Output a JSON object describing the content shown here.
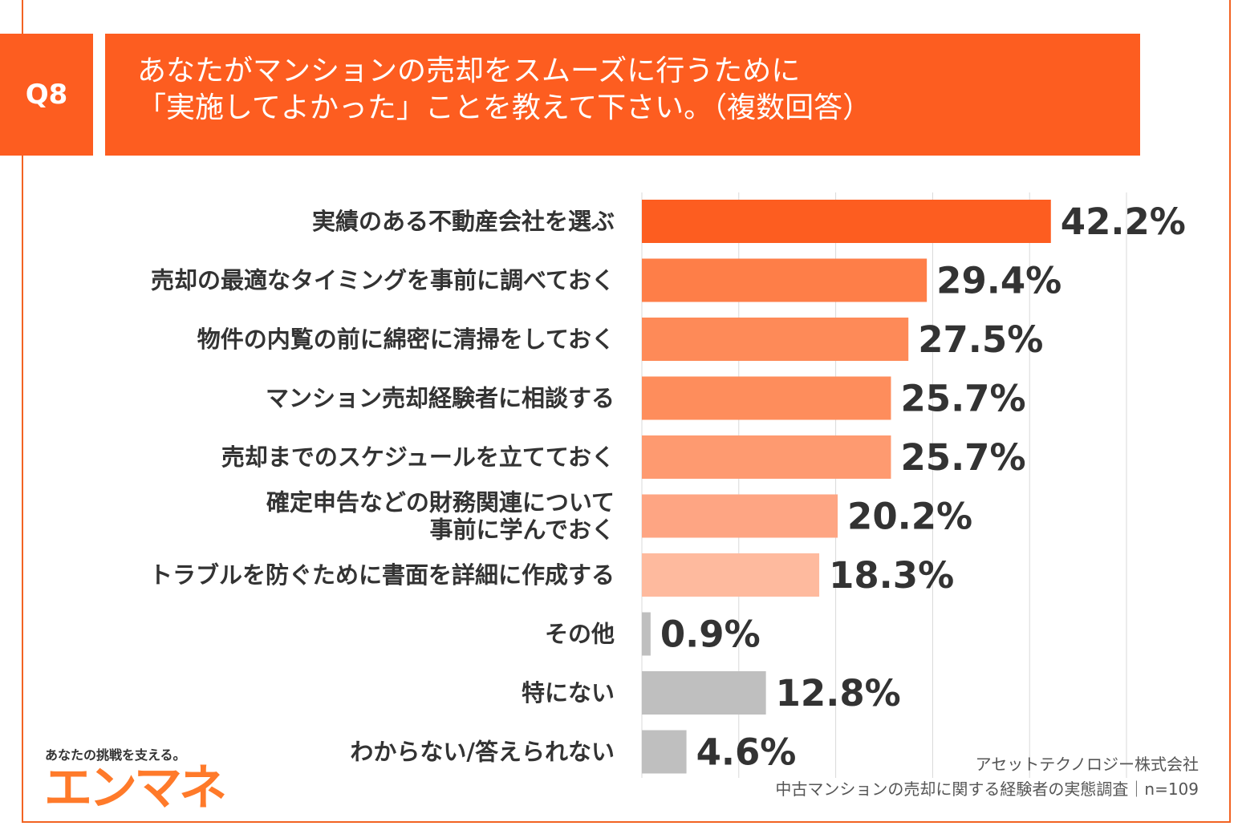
{
  "header": {
    "question_no": "Q8",
    "title_line1": "あなたがマンションの売却をスムーズに行うために",
    "title_line2": "「実施してよかった」ことを教えて下さい。（複数回答）"
  },
  "chart_data": {
    "type": "bar",
    "orientation": "horizontal",
    "title": "あなたがマンションの売却をスムーズに行うために「実施してよかった」ことを教えて下さい。（複数回答）",
    "xlim": [
      0,
      50
    ],
    "grid": true,
    "categories": [
      [
        "実績のある不動産会社を選ぶ"
      ],
      [
        "売却の最適なタイミングを事前に調べておく"
      ],
      [
        "物件の内覧の前に綿密に清掃をしておく"
      ],
      [
        "マンション売却経験者に相談する"
      ],
      [
        "売却までのスケジュールを立てておく"
      ],
      [
        "確定申告などの財務関連について",
        "事前に学んでおく"
      ],
      [
        "トラブルを防ぐために書面を詳細に作成する"
      ],
      [
        "その他"
      ],
      [
        "特にない"
      ],
      [
        "わからない/答えられない"
      ]
    ],
    "values": [
      42.2,
      29.4,
      27.5,
      25.7,
      25.7,
      20.2,
      18.3,
      0.9,
      12.8,
      4.6
    ],
    "value_labels": [
      "42.2%",
      "29.4%",
      "27.5%",
      "25.7%",
      "25.7%",
      "20.2%",
      "18.3%",
      "0.9%",
      "12.8%",
      "4.6%"
    ],
    "bar_colors": [
      "#fd5d20",
      "#fe7e48",
      "#fe8a58",
      "#fe8d5c",
      "#fe9a70",
      "#fea583",
      "#feba9e",
      "#bfbfbf",
      "#bfbfbf",
      "#bfbfbf"
    ]
  },
  "source": {
    "company": "アセットテクノロジー株式会社",
    "survey": "中古マンションの売却に関する経験者の実態調査｜n=109"
  },
  "brand": {
    "tagline": "あなたの挑戦を支える。",
    "logo_text": "エンマネ"
  },
  "colors": {
    "accent": "#fd5d20",
    "grid": "#d9d9d9",
    "text": "#333333"
  }
}
